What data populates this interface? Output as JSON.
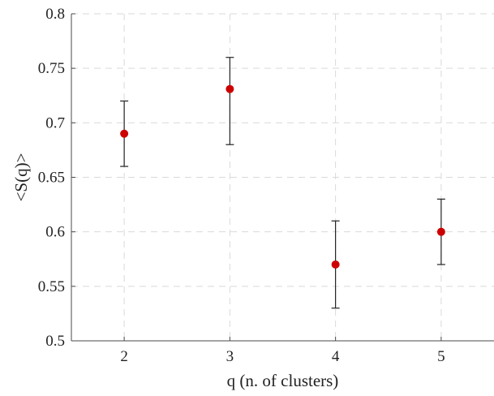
{
  "chart_data": {
    "type": "scatter",
    "title": "",
    "xlabel": "q (n. of clusters)",
    "ylabel": "<S(q)>",
    "xlim": [
      1.5,
      5.5
    ],
    "ylim": [
      0.5,
      0.8
    ],
    "xticks": [
      2,
      3,
      4,
      5
    ],
    "yticks": [
      0.5,
      0.55,
      0.6,
      0.65,
      0.7,
      0.75,
      0.8
    ],
    "xtick_labels": [
      "2",
      "3",
      "4",
      "5"
    ],
    "ytick_labels": [
      "0.5",
      "0.55",
      "0.6",
      "0.65",
      "0.7",
      "0.75",
      "0.8"
    ],
    "grid": true,
    "series": [
      {
        "x": [
          2,
          3,
          4,
          5
        ],
        "y": [
          0.69,
          0.731,
          0.57,
          0.6
        ],
        "err_low": [
          0.66,
          0.68,
          0.53,
          0.57
        ],
        "err_high": [
          0.72,
          0.76,
          0.61,
          0.63
        ],
        "marker_color": "#cc0000"
      }
    ]
  }
}
